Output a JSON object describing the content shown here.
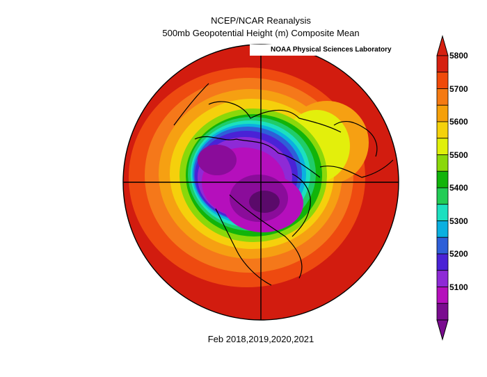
{
  "title_line1": "NCEP/NCAR Reanalysis",
  "title_line2": "500mb Geopotential Height (m) Composite Mean",
  "credit": "NOAA Physical Sciences Laboratory",
  "footer": "Feb 2018,2019,2020,2021",
  "colorbar": {
    "levels": [
      "5100",
      "5200",
      "5300",
      "5400",
      "5500",
      "5600",
      "5700",
      "5800"
    ],
    "colors": [
      "#7a0c8f",
      "#b50fbc",
      "#8e2ad6",
      "#4a22d6",
      "#2e5fd8",
      "#0ab0e0",
      "#1ce0c0",
      "#22cc55",
      "#11b40a",
      "#8ad80a",
      "#e0f00a",
      "#f5d20a",
      "#f5a00a",
      "#f57a12",
      "#f04a0a",
      "#d62010"
    ]
  }
}
